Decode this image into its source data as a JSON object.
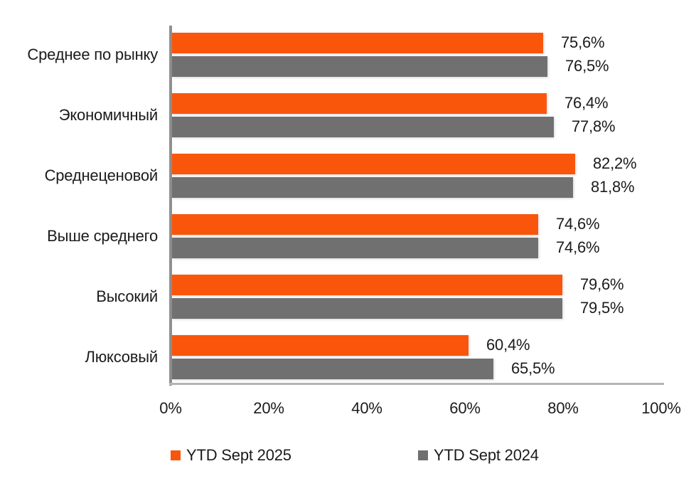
{
  "chart_data": {
    "type": "bar",
    "orientation": "horizontal",
    "categories": [
      "Среднее по рынку",
      "Экономичный",
      "Среднеценовой",
      "Выше среднего",
      "Высокий",
      "Люксовый"
    ],
    "series": [
      {
        "name": "YTD Sept 2025",
        "color": "#F9560C",
        "values": [
          75.6,
          76.4,
          82.2,
          74.6,
          79.6,
          60.4
        ],
        "labels": [
          "75,6%",
          "76,4%",
          "82,2%",
          "74,6%",
          "79,6%",
          "60,4%"
        ]
      },
      {
        "name": "YTD Sept 2024",
        "color": "#707070",
        "values": [
          76.5,
          77.8,
          81.8,
          74.6,
          79.5,
          65.5
        ],
        "labels": [
          "76,5%",
          "77,8%",
          "81,8%",
          "74,6%",
          "79,5%",
          "65,5%"
        ]
      }
    ],
    "x_ticks": [
      "0%",
      "20%",
      "40%",
      "60%",
      "80%",
      "100%"
    ],
    "xlim": [
      0,
      100
    ],
    "grid": false,
    "legend_position": "bottom",
    "colors": {
      "axis_line": "#8F8F8F",
      "baseline": "#B5B5B5",
      "text": "#1B1B1B",
      "background": "#FFFFFF"
    }
  }
}
